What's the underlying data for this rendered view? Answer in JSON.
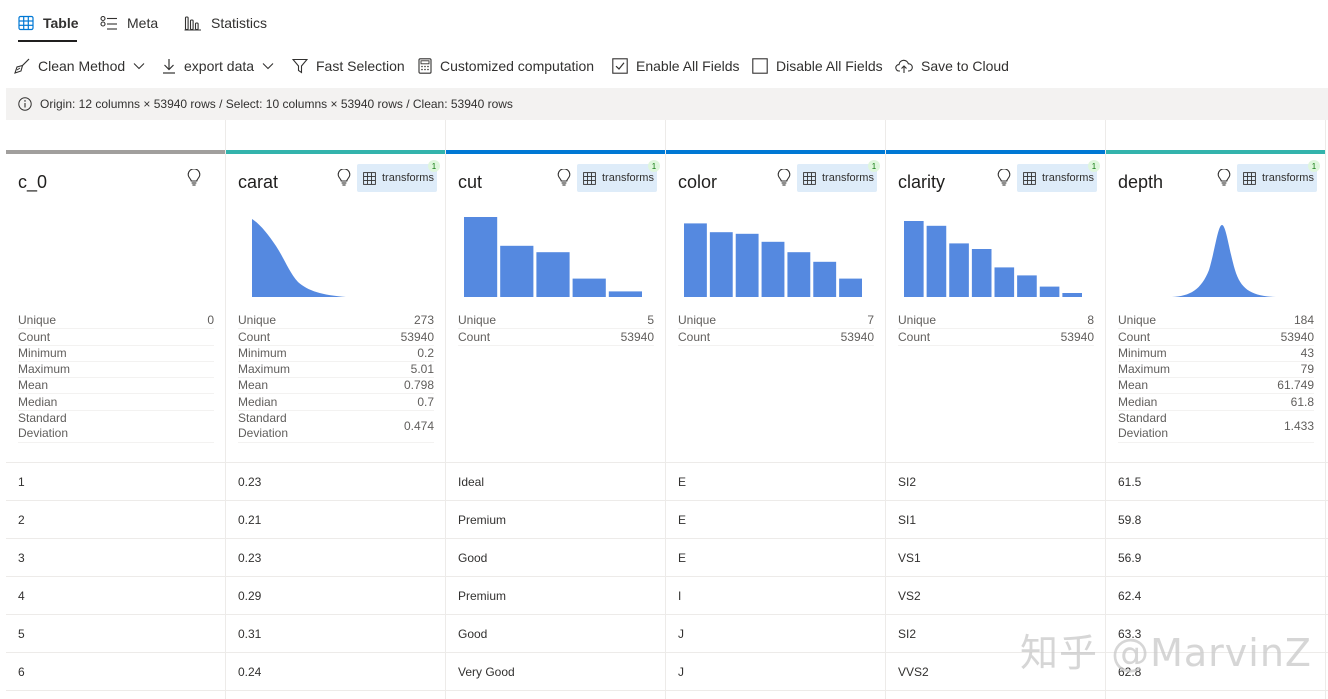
{
  "tabs": [
    {
      "label": "Table",
      "icon": "table-icon",
      "active": true
    },
    {
      "label": "Meta",
      "icon": "list-icon",
      "active": false
    },
    {
      "label": "Statistics",
      "icon": "bar-chart-icon",
      "active": false
    }
  ],
  "toolbar": {
    "clean_method": "Clean Method",
    "export_data": "export data",
    "fast_selection": "Fast Selection",
    "customized_computation": "Customized computation",
    "enable_all": "Enable All Fields",
    "disable_all": "Disable All Fields",
    "save_cloud": "Save to Cloud"
  },
  "info": "Origin: 12 columns × 53940 rows / Select: 10 columns × 53940 rows / Clean: 53940 rows",
  "transform_label": "transforms",
  "transform_count": "1",
  "colors": {
    "accent": "#0078d4",
    "bar": "#5589e0",
    "teal": "#33b3ac",
    "gray": "#a19f9d",
    "active_bg": "#deecf9"
  },
  "columns": [
    {
      "name": "c_0",
      "stats": [
        {
          "label": "Unique",
          "value": "0"
        },
        {
          "label": "Count",
          "value": ""
        },
        {
          "label": "Minimum",
          "value": ""
        },
        {
          "label": "Maximum",
          "value": ""
        },
        {
          "label": "Mean",
          "value": ""
        },
        {
          "label": "Median",
          "value": ""
        },
        {
          "label": "Standard Deviation",
          "value": ""
        }
      ]
    },
    {
      "name": "carat",
      "stats": [
        {
          "label": "Unique",
          "value": "273"
        },
        {
          "label": "Count",
          "value": "53940"
        },
        {
          "label": "Minimum",
          "value": "0.2"
        },
        {
          "label": "Maximum",
          "value": "5.01"
        },
        {
          "label": "Mean",
          "value": "0.798"
        },
        {
          "label": "Median",
          "value": "0.7"
        },
        {
          "label": "Standard Deviation",
          "value": "0.474"
        }
      ]
    },
    {
      "name": "cut",
      "stats": [
        {
          "label": "Unique",
          "value": "5"
        },
        {
          "label": "Count",
          "value": "53940"
        }
      ]
    },
    {
      "name": "color",
      "stats": [
        {
          "label": "Unique",
          "value": "7"
        },
        {
          "label": "Count",
          "value": "53940"
        }
      ]
    },
    {
      "name": "clarity",
      "stats": [
        {
          "label": "Unique",
          "value": "8"
        },
        {
          "label": "Count",
          "value": "53940"
        }
      ]
    },
    {
      "name": "depth",
      "stats": [
        {
          "label": "Unique",
          "value": "184"
        },
        {
          "label": "Count",
          "value": "53940"
        },
        {
          "label": "Minimum",
          "value": "43"
        },
        {
          "label": "Maximum",
          "value": "79"
        },
        {
          "label": "Mean",
          "value": "61.749"
        },
        {
          "label": "Median",
          "value": "61.8"
        },
        {
          "label": "Standard Deviation",
          "value": "1.433"
        }
      ]
    }
  ],
  "histograms": {
    "cut": [
      1.0,
      0.64,
      0.56,
      0.23,
      0.07
    ],
    "color": [
      0.92,
      0.81,
      0.79,
      0.69,
      0.56,
      0.44,
      0.23
    ],
    "clarity": [
      0.95,
      0.89,
      0.67,
      0.6,
      0.37,
      0.27,
      0.13,
      0.05
    ]
  },
  "rows": [
    [
      "1",
      "0.23",
      "Ideal",
      "E",
      "SI2",
      "61.5"
    ],
    [
      "2",
      "0.21",
      "Premium",
      "E",
      "SI1",
      "59.8"
    ],
    [
      "3",
      "0.23",
      "Good",
      "E",
      "VS1",
      "56.9"
    ],
    [
      "4",
      "0.29",
      "Premium",
      "I",
      "VS2",
      "62.4"
    ],
    [
      "5",
      "0.31",
      "Good",
      "J",
      "SI2",
      "63.3"
    ],
    [
      "6",
      "0.24",
      "Very Good",
      "J",
      "VVS2",
      "62.8"
    ]
  ],
  "watermark": "知乎 @MarvinZ"
}
